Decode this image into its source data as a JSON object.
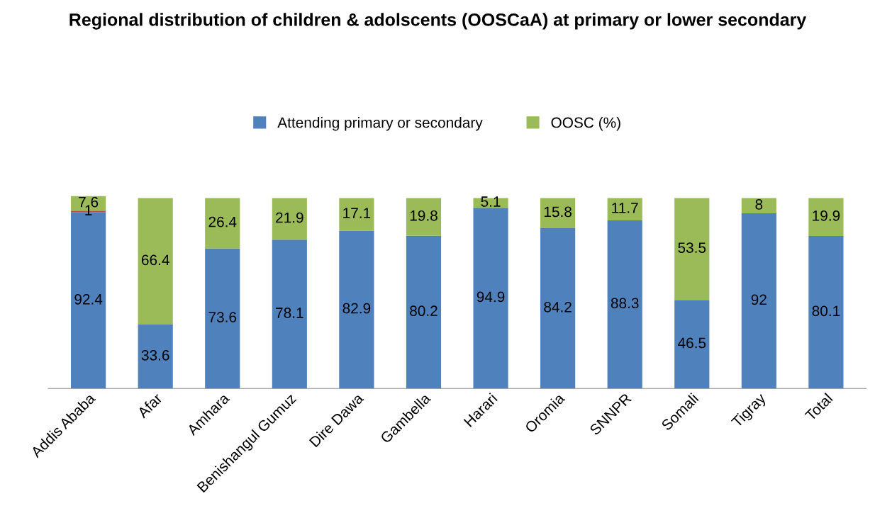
{
  "chart_data": {
    "type": "bar",
    "title": "Regional distribution of children & adolscents (OOSCaA) at primary or lower secondary",
    "categories": [
      "Addis Ababa",
      "Afar",
      "Amhara",
      "Benishangul Gumuz",
      "Dire Dawa",
      "Gambella",
      "Harari",
      "Oromia",
      "SNNPR",
      "Somali",
      "Tigray",
      "Total"
    ],
    "stacked": true,
    "data_labels": true,
    "legend": "top",
    "tick_labels": "x",
    "grid": false,
    "series": [
      {
        "name": "Attending primary or secondary",
        "color": "#4f81bd",
        "values": [
          92.4,
          33.6,
          73.6,
          78.1,
          82.9,
          80.2,
          94.9,
          84.2,
          88.3,
          46.5,
          92,
          80.1
        ]
      },
      {
        "color": "#c0504d",
        "values": [
          1,
          null,
          null,
          null,
          null,
          null,
          null,
          null,
          null,
          null,
          null,
          null
        ]
      },
      {
        "name": "OOSC (%)",
        "color": "#9bbb59",
        "values": [
          7.6,
          66.4,
          26.4,
          21.9,
          17.1,
          19.8,
          5.1,
          15.8,
          11.7,
          53.5,
          8,
          19.9
        ]
      }
    ]
  }
}
